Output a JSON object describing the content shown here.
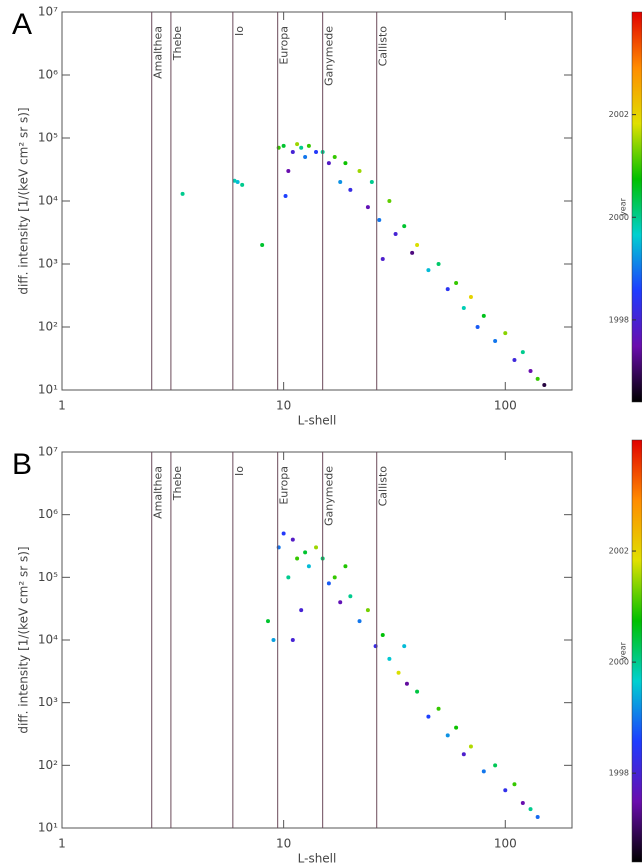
{
  "chart_data": [
    {
      "type": "scatter",
      "panel_label": "A",
      "xlabel": "L-shell",
      "ylabel": "diff. intensity [1/(keV cm² sr s)]",
      "log_x": true,
      "log_y": true,
      "xlim": [
        1,
        200
      ],
      "ylim": [
        10,
        10000000
      ],
      "xticks": [
        1,
        10,
        100
      ],
      "yticks": [
        {
          "value": 10,
          "label": "10¹"
        },
        {
          "value": 100,
          "label": "10²"
        },
        {
          "value": 1000,
          "label": "10³"
        },
        {
          "value": 10000,
          "label": "10⁴"
        },
        {
          "value": 100000,
          "label": "10⁵"
        },
        {
          "value": 1000000,
          "label": "10⁶"
        },
        {
          "value": 10000000,
          "label": "10⁷"
        }
      ],
      "vlines": {
        "labels": [
          "Amalthea",
          "Thebe",
          "Io",
          "Europa",
          "Ganymede",
          "Callisto"
        ],
        "x": [
          2.54,
          3.1,
          5.9,
          9.4,
          15,
          26.3
        ]
      },
      "colorbar": {
        "label": "year",
        "lim": [
          1996.4,
          2004
        ],
        "ticks": [
          1998,
          2000,
          2002
        ],
        "colors": [
          "#000000",
          "#6a0dad",
          "#1e3cff",
          "#00d0d0",
          "#00c000",
          "#e0e000",
          "#ff8c00",
          "#e00000"
        ]
      },
      "x": [
        6.2,
        6.5,
        6.0,
        9.5,
        10,
        10.5,
        11,
        11.5,
        12,
        12.5,
        13,
        14,
        15,
        16,
        17,
        18,
        19,
        20,
        22,
        24,
        25,
        27,
        30,
        32,
        35,
        38,
        40,
        45,
        50,
        55,
        60,
        65,
        70,
        75,
        80,
        90,
        100,
        110,
        120,
        130,
        140,
        150,
        8,
        10.2,
        3.5,
        28
      ],
      "values": [
        20000,
        18000,
        21000,
        70000,
        75000,
        30000,
        60000,
        80000,
        70000,
        50000,
        75000,
        60000,
        60000,
        40000,
        50000,
        20000,
        40000,
        15000,
        30000,
        8000,
        20000,
        5000,
        10000,
        3000,
        4000,
        1500,
        2000,
        800,
        1000,
        400,
        500,
        200,
        300,
        100,
        150,
        60,
        80,
        30,
        40,
        20,
        15,
        12,
        2000,
        12000,
        13000,
        1200
      ],
      "years": [
        1999.5,
        2000,
        1999.8,
        2001,
        2000.5,
        1997.5,
        1998,
        2001.5,
        2000,
        1999,
        2001,
        1998.5,
        2000,
        1997.8,
        2001,
        1999.2,
        2000.8,
        1998.2,
        2001.5,
        1997.6,
        2000,
        1999,
        2001.2,
        1998,
        2000.5,
        1997.2,
        2001.8,
        1999.5,
        2000.2,
        1998.4,
        2001,
        1999.8,
        2002,
        1998.8,
        2000.6,
        1999,
        2001.4,
        1998.1,
        2000,
        1997.5,
        2001,
        1996.8,
        2000.5,
        1998.6,
        2000,
        1997.9
      ]
    },
    {
      "type": "scatter",
      "panel_label": "B",
      "xlabel": "L-shell",
      "ylabel": "diff. intensity [1/(keV cm² sr s)]",
      "log_x": true,
      "log_y": true,
      "xlim": [
        1,
        200
      ],
      "ylim": [
        10,
        10000000
      ],
      "xticks": [
        1,
        10,
        100
      ],
      "yticks": [
        {
          "value": 10,
          "label": "10¹"
        },
        {
          "value": 100,
          "label": "10²"
        },
        {
          "value": 1000,
          "label": "10³"
        },
        {
          "value": 10000,
          "label": "10⁴"
        },
        {
          "value": 100000,
          "label": "10⁵"
        },
        {
          "value": 1000000,
          "label": "10⁶"
        },
        {
          "value": 10000000,
          "label": "10⁷"
        }
      ],
      "vlines": {
        "labels": [
          "Amalthea",
          "Thebe",
          "Io",
          "Europa",
          "Ganymede",
          "Callisto"
        ],
        "x": [
          2.54,
          3.1,
          5.9,
          9.4,
          15,
          26.3
        ]
      },
      "colorbar": {
        "label": "year",
        "lim": [
          1996.4,
          2004
        ],
        "ticks": [
          1998,
          2000,
          2002
        ],
        "colors": [
          "#000000",
          "#6a0dad",
          "#1e3cff",
          "#00d0d0",
          "#00c000",
          "#e0e000",
          "#ff8c00",
          "#e00000"
        ]
      },
      "x": [
        9.5,
        10,
        10.5,
        11,
        11.5,
        12,
        12.5,
        13,
        14,
        15,
        16,
        17,
        18,
        20,
        22,
        24,
        26,
        28,
        30,
        33,
        36,
        40,
        45,
        50,
        55,
        60,
        65,
        70,
        80,
        90,
        100,
        110,
        120,
        130,
        140,
        8.5,
        9,
        11,
        19,
        35
      ],
      "values": [
        300000,
        500000,
        100000,
        400000,
        200000,
        30000,
        250000,
        150000,
        300000,
        200000,
        80000,
        100000,
        40000,
        50000,
        20000,
        30000,
        8000,
        12000,
        5000,
        3000,
        2000,
        1500,
        600,
        800,
        300,
        400,
        150,
        200,
        80,
        100,
        40,
        50,
        25,
        20,
        15,
        20000,
        10000,
        10000,
        150000,
        8000
      ],
      "years": [
        1999,
        1998.5,
        2000,
        1997.8,
        2001,
        1998,
        2000.5,
        1999.5,
        2001.5,
        2000.2,
        1998.8,
        2001,
        1997.6,
        2000,
        1999,
        2001.3,
        1998.2,
        2000.7,
        1999.6,
        2001.8,
        1997.4,
        2000.4,
        1998.6,
        2001,
        1999.2,
        2000.8,
        1997.9,
        2001.6,
        1999,
        2000.3,
        1998.3,
        2001,
        1997.5,
        2000,
        1998.9,
        2000.5,
        1999.3,
        1998,
        2000.9,
        1999.5
      ]
    }
  ]
}
